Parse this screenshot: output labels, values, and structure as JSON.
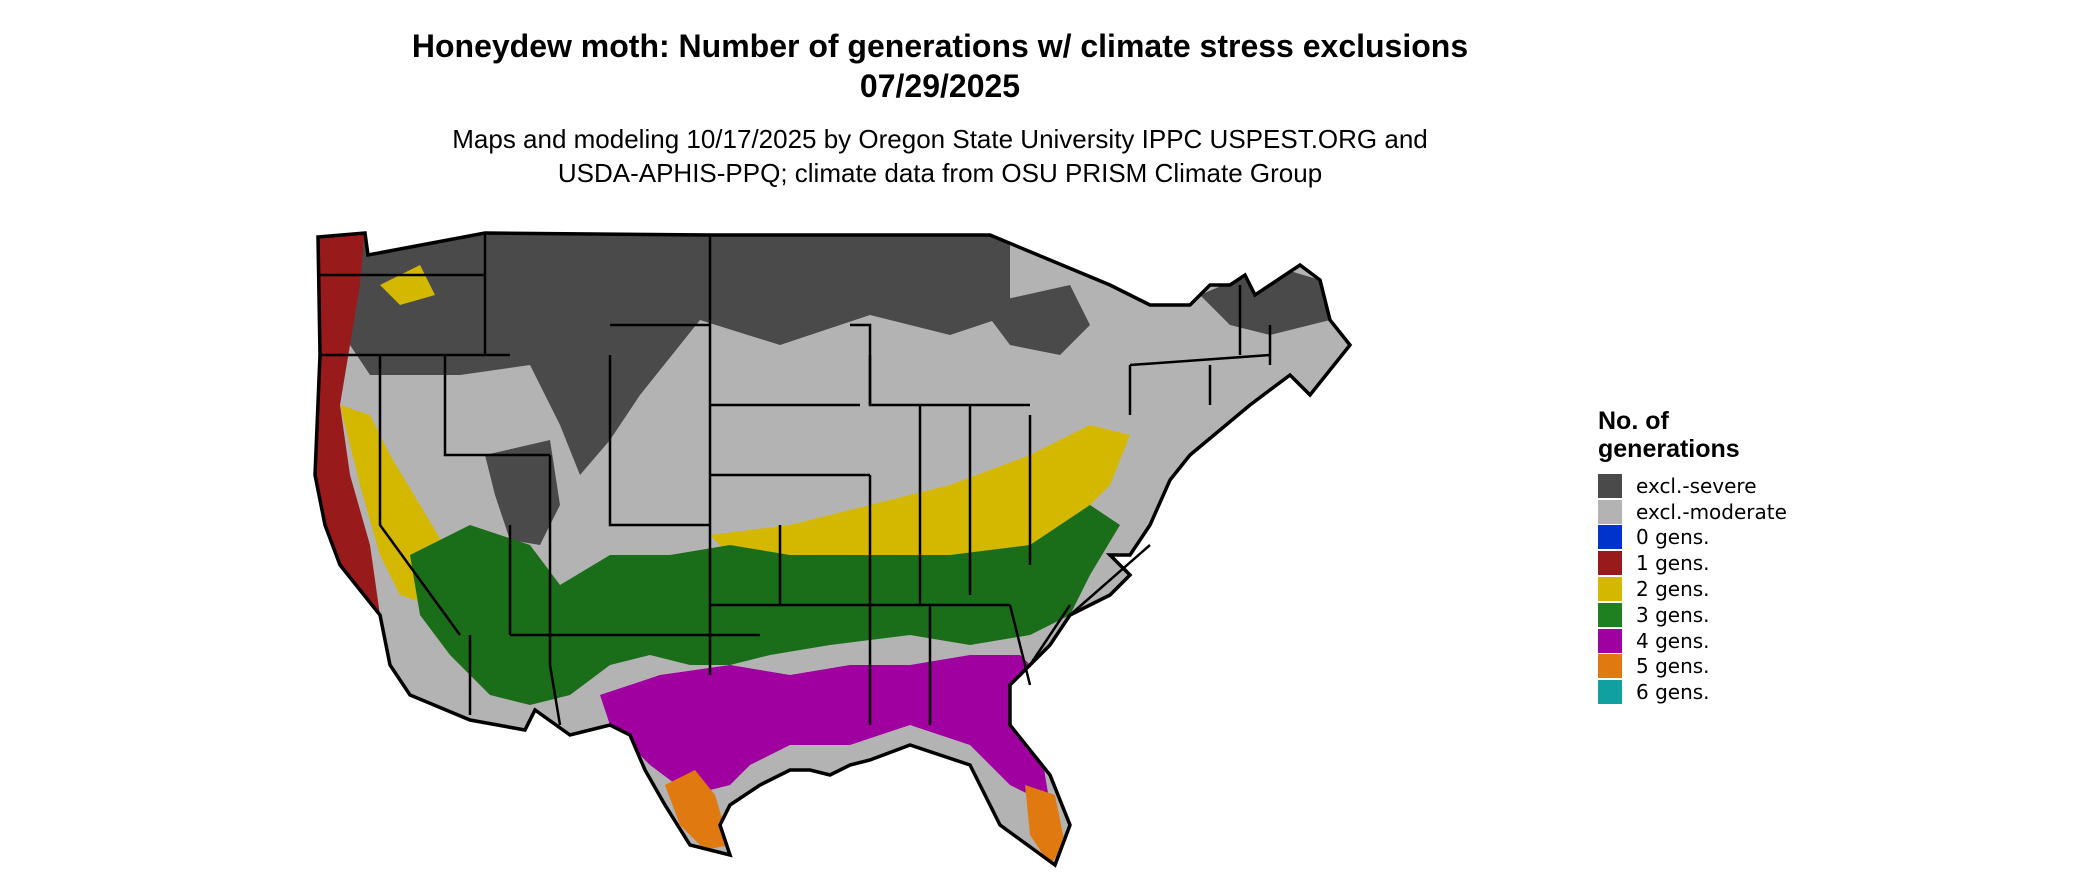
{
  "title": {
    "line1": "Honeydew moth: Number of generations w/ climate stress exclusions",
    "line2": "07/29/2025"
  },
  "subtitle": {
    "line1": "Maps and modeling 10/17/2025 by Oregon State University IPPC USPEST.ORG and",
    "line2": "USDA-APHIS-PPQ; climate data from OSU PRISM Climate Group"
  },
  "legend": {
    "title_line1": "No. of",
    "title_line2": "generations",
    "items": [
      {
        "label": "excl.-severe",
        "color": "#4a4a4a"
      },
      {
        "label": "excl.-moderate",
        "color": "#b3b3b3"
      },
      {
        "label": "0 gens.",
        "color": "#0033cc"
      },
      {
        "label": "1 gens.",
        "color": "#991a1a"
      },
      {
        "label": "2 gens.",
        "color": "#d4b800"
      },
      {
        "label": "3 gens.",
        "color": "#1f801f"
      },
      {
        "label": "4 gens.",
        "color": "#a000a0"
      },
      {
        "label": "5 gens.",
        "color": "#e07a10"
      },
      {
        "label": "6 gens.",
        "color": "#11a0a0"
      }
    ]
  },
  "map": {
    "region": "Contiguous United States",
    "state_border_color": "#000000",
    "light_green_color": "#88e088",
    "dark_green_color": "#006400"
  }
}
